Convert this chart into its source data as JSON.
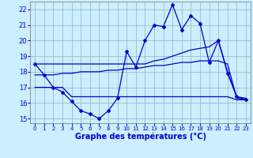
{
  "xlabel": "Graphe des températures (°C)",
  "bg_color": "#cceeff",
  "grid_color": "#99bbcc",
  "line_color": "#0000cc",
  "xlim": [
    -0.5,
    23.5
  ],
  "ylim": [
    14.7,
    22.5
  ],
  "yticks": [
    15,
    16,
    17,
    18,
    19,
    20,
    21,
    22
  ],
  "xticks": [
    0,
    1,
    2,
    3,
    4,
    5,
    6,
    7,
    8,
    9,
    10,
    11,
    12,
    13,
    14,
    15,
    16,
    17,
    18,
    19,
    20,
    21,
    22,
    23
  ],
  "hours": [
    0,
    1,
    2,
    3,
    4,
    5,
    6,
    7,
    8,
    9,
    10,
    11,
    12,
    13,
    14,
    15,
    16,
    17,
    18,
    19,
    20,
    21,
    22,
    23
  ],
  "temp_actual": [
    18.5,
    17.8,
    17.0,
    16.7,
    16.1,
    15.5,
    15.3,
    15.0,
    15.5,
    16.3,
    19.3,
    18.3,
    20.0,
    21.0,
    20.9,
    22.3,
    20.7,
    21.6,
    21.1,
    18.6,
    20.0,
    17.9,
    16.4,
    16.2
  ],
  "temp_min": [
    17.0,
    17.0,
    17.0,
    17.0,
    16.4,
    16.4,
    16.4,
    16.4,
    16.4,
    16.4,
    16.4,
    16.4,
    16.4,
    16.4,
    16.4,
    16.4,
    16.4,
    16.4,
    16.4,
    16.4,
    16.4,
    16.4,
    16.2,
    16.2
  ],
  "temp_max": [
    18.5,
    18.5,
    18.5,
    18.5,
    18.5,
    18.5,
    18.5,
    18.5,
    18.5,
    18.5,
    18.5,
    18.5,
    18.5,
    18.7,
    18.8,
    19.0,
    19.2,
    19.4,
    19.5,
    19.6,
    20.0,
    18.0,
    16.4,
    16.3
  ],
  "temp_mean": [
    17.8,
    17.8,
    17.8,
    17.9,
    17.9,
    18.0,
    18.0,
    18.0,
    18.1,
    18.1,
    18.2,
    18.2,
    18.3,
    18.4,
    18.4,
    18.5,
    18.6,
    18.6,
    18.7,
    18.7,
    18.7,
    18.5,
    16.3,
    16.2
  ]
}
